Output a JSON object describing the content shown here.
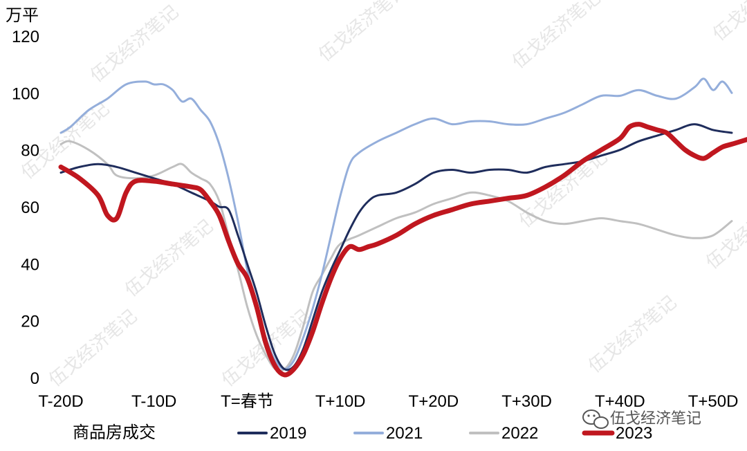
{
  "chart_data": {
    "type": "line",
    "unit_label": "万平",
    "legend_title": "商品房成交",
    "ylim": [
      0,
      120
    ],
    "yticks": [
      0,
      20,
      40,
      60,
      80,
      100,
      120
    ],
    "xlim": [
      -20,
      52
    ],
    "xticks": [
      {
        "x": -20,
        "label": "T-20D"
      },
      {
        "x": -10,
        "label": "T-10D"
      },
      {
        "x": 0,
        "label": "T=春节"
      },
      {
        "x": 10,
        "label": "T+10D"
      },
      {
        "x": 20,
        "label": "T+20D"
      },
      {
        "x": 30,
        "label": "T+30D"
      },
      {
        "x": 40,
        "label": "T+40D"
      },
      {
        "x": 50,
        "label": "T+50D"
      }
    ],
    "grid": false,
    "legend_position": "bottom",
    "series": [
      {
        "name": "2019",
        "color": "#1f2d5c",
        "width": 3,
        "points": [
          [
            -20,
            72
          ],
          [
            -18,
            74
          ],
          [
            -16,
            75
          ],
          [
            -14,
            74
          ],
          [
            -12,
            72
          ],
          [
            -10,
            70
          ],
          [
            -8,
            68
          ],
          [
            -6,
            65
          ],
          [
            -4,
            62
          ],
          [
            -3,
            60
          ],
          [
            -2,
            59
          ],
          [
            -1,
            50
          ],
          [
            0,
            40
          ],
          [
            1,
            30
          ],
          [
            2,
            18
          ],
          [
            3,
            8
          ],
          [
            4,
            3
          ],
          [
            5,
            4
          ],
          [
            6,
            10
          ],
          [
            7,
            20
          ],
          [
            8,
            30
          ],
          [
            9,
            38
          ],
          [
            10,
            45
          ],
          [
            11,
            52
          ],
          [
            12,
            58
          ],
          [
            13,
            62
          ],
          [
            14,
            64
          ],
          [
            16,
            65
          ],
          [
            18,
            68
          ],
          [
            20,
            72
          ],
          [
            22,
            73
          ],
          [
            24,
            72
          ],
          [
            26,
            73
          ],
          [
            28,
            73
          ],
          [
            30,
            72
          ],
          [
            32,
            74
          ],
          [
            34,
            75
          ],
          [
            36,
            76
          ],
          [
            38,
            78
          ],
          [
            40,
            80
          ],
          [
            42,
            83
          ],
          [
            44,
            85
          ],
          [
            46,
            87
          ],
          [
            48,
            89
          ],
          [
            50,
            87
          ],
          [
            52,
            86
          ]
        ]
      },
      {
        "name": "2021",
        "color": "#94aedb",
        "width": 3,
        "points": [
          [
            -20,
            86
          ],
          [
            -19,
            88
          ],
          [
            -17,
            94
          ],
          [
            -15,
            98
          ],
          [
            -13,
            103
          ],
          [
            -11,
            104
          ],
          [
            -10,
            103
          ],
          [
            -9,
            103
          ],
          [
            -8,
            101
          ],
          [
            -7,
            97
          ],
          [
            -6,
            98
          ],
          [
            -5,
            94
          ],
          [
            -4,
            90
          ],
          [
            -3,
            82
          ],
          [
            -2,
            70
          ],
          [
            -1,
            55
          ],
          [
            0,
            38
          ],
          [
            1,
            25
          ],
          [
            2,
            14
          ],
          [
            3,
            6
          ],
          [
            4,
            3
          ],
          [
            5,
            6
          ],
          [
            6,
            14
          ],
          [
            7,
            24
          ],
          [
            8,
            36
          ],
          [
            9,
            50
          ],
          [
            10,
            64
          ],
          [
            11,
            75
          ],
          [
            12,
            79
          ],
          [
            14,
            83
          ],
          [
            16,
            86
          ],
          [
            18,
            89
          ],
          [
            20,
            91
          ],
          [
            22,
            89
          ],
          [
            24,
            90
          ],
          [
            26,
            90
          ],
          [
            28,
            89
          ],
          [
            30,
            89
          ],
          [
            32,
            91
          ],
          [
            34,
            93
          ],
          [
            36,
            96
          ],
          [
            38,
            99
          ],
          [
            40,
            99
          ],
          [
            42,
            101
          ],
          [
            44,
            99
          ],
          [
            46,
            98
          ],
          [
            48,
            102
          ],
          [
            49,
            105
          ],
          [
            50,
            101
          ],
          [
            51,
            104
          ],
          [
            52,
            100
          ]
        ]
      },
      {
        "name": "2022",
        "color": "#c0c0c0",
        "width": 3,
        "points": [
          [
            -20,
            82
          ],
          [
            -19,
            83
          ],
          [
            -17,
            80
          ],
          [
            -15,
            75
          ],
          [
            -14,
            71
          ],
          [
            -12,
            70
          ],
          [
            -10,
            71
          ],
          [
            -8,
            74
          ],
          [
            -7,
            75
          ],
          [
            -6,
            72
          ],
          [
            -5,
            70
          ],
          [
            -4,
            68
          ],
          [
            -3,
            62
          ],
          [
            -2,
            50
          ],
          [
            -1,
            38
          ],
          [
            0,
            25
          ],
          [
            1,
            15
          ],
          [
            2,
            8
          ],
          [
            3,
            3
          ],
          [
            4,
            3
          ],
          [
            5,
            8
          ],
          [
            6,
            18
          ],
          [
            7,
            30
          ],
          [
            8,
            36
          ],
          [
            9,
            42
          ],
          [
            10,
            47
          ],
          [
            12,
            50
          ],
          [
            14,
            53
          ],
          [
            16,
            56
          ],
          [
            18,
            58
          ],
          [
            20,
            61
          ],
          [
            22,
            63
          ],
          [
            24,
            65
          ],
          [
            26,
            64
          ],
          [
            28,
            62
          ],
          [
            30,
            58
          ],
          [
            32,
            55
          ],
          [
            34,
            54
          ],
          [
            36,
            55
          ],
          [
            38,
            56
          ],
          [
            40,
            55
          ],
          [
            42,
            54
          ],
          [
            44,
            52
          ],
          [
            46,
            50
          ],
          [
            48,
            49
          ],
          [
            50,
            50
          ],
          [
            52,
            55
          ]
        ]
      },
      {
        "name": "2023",
        "color": "#c0171f",
        "width": 7,
        "points": [
          [
            -20,
            74
          ],
          [
            -18,
            70
          ],
          [
            -16,
            64
          ],
          [
            -15,
            57
          ],
          [
            -14,
            56
          ],
          [
            -13,
            65
          ],
          [
            -12,
            69
          ],
          [
            -10,
            69
          ],
          [
            -8,
            68
          ],
          [
            -6,
            67
          ],
          [
            -5,
            66
          ],
          [
            -4,
            62
          ],
          [
            -3,
            57
          ],
          [
            -2,
            48
          ],
          [
            -1,
            40
          ],
          [
            0,
            35
          ],
          [
            1,
            25
          ],
          [
            2,
            12
          ],
          [
            3,
            4
          ],
          [
            4,
            1
          ],
          [
            5,
            3
          ],
          [
            6,
            8
          ],
          [
            7,
            16
          ],
          [
            8,
            26
          ],
          [
            9,
            35
          ],
          [
            10,
            42
          ],
          [
            11,
            46
          ],
          [
            12,
            45
          ],
          [
            13,
            46
          ],
          [
            14,
            47
          ],
          [
            16,
            50
          ],
          [
            18,
            54
          ],
          [
            20,
            57
          ],
          [
            22,
            59
          ],
          [
            24,
            61
          ],
          [
            26,
            62
          ],
          [
            28,
            63
          ],
          [
            30,
            64
          ],
          [
            32,
            67
          ],
          [
            34,
            71
          ],
          [
            36,
            76
          ],
          [
            38,
            80
          ],
          [
            40,
            84
          ],
          [
            41,
            88
          ],
          [
            42,
            89
          ],
          [
            43,
            88
          ],
          [
            44,
            87
          ],
          [
            45,
            86
          ],
          [
            46,
            83
          ],
          [
            47,
            80
          ],
          [
            48,
            78
          ],
          [
            49,
            77
          ],
          [
            50,
            79
          ],
          [
            51,
            81
          ],
          [
            52,
            82
          ],
          [
            53,
            83
          ],
          [
            54,
            84
          ]
        ]
      }
    ]
  },
  "watermark": {
    "brand_text": "伍戈经济笔记",
    "icon": "wechat-logo-icon",
    "faint_text": "伍戈经济笔记"
  }
}
